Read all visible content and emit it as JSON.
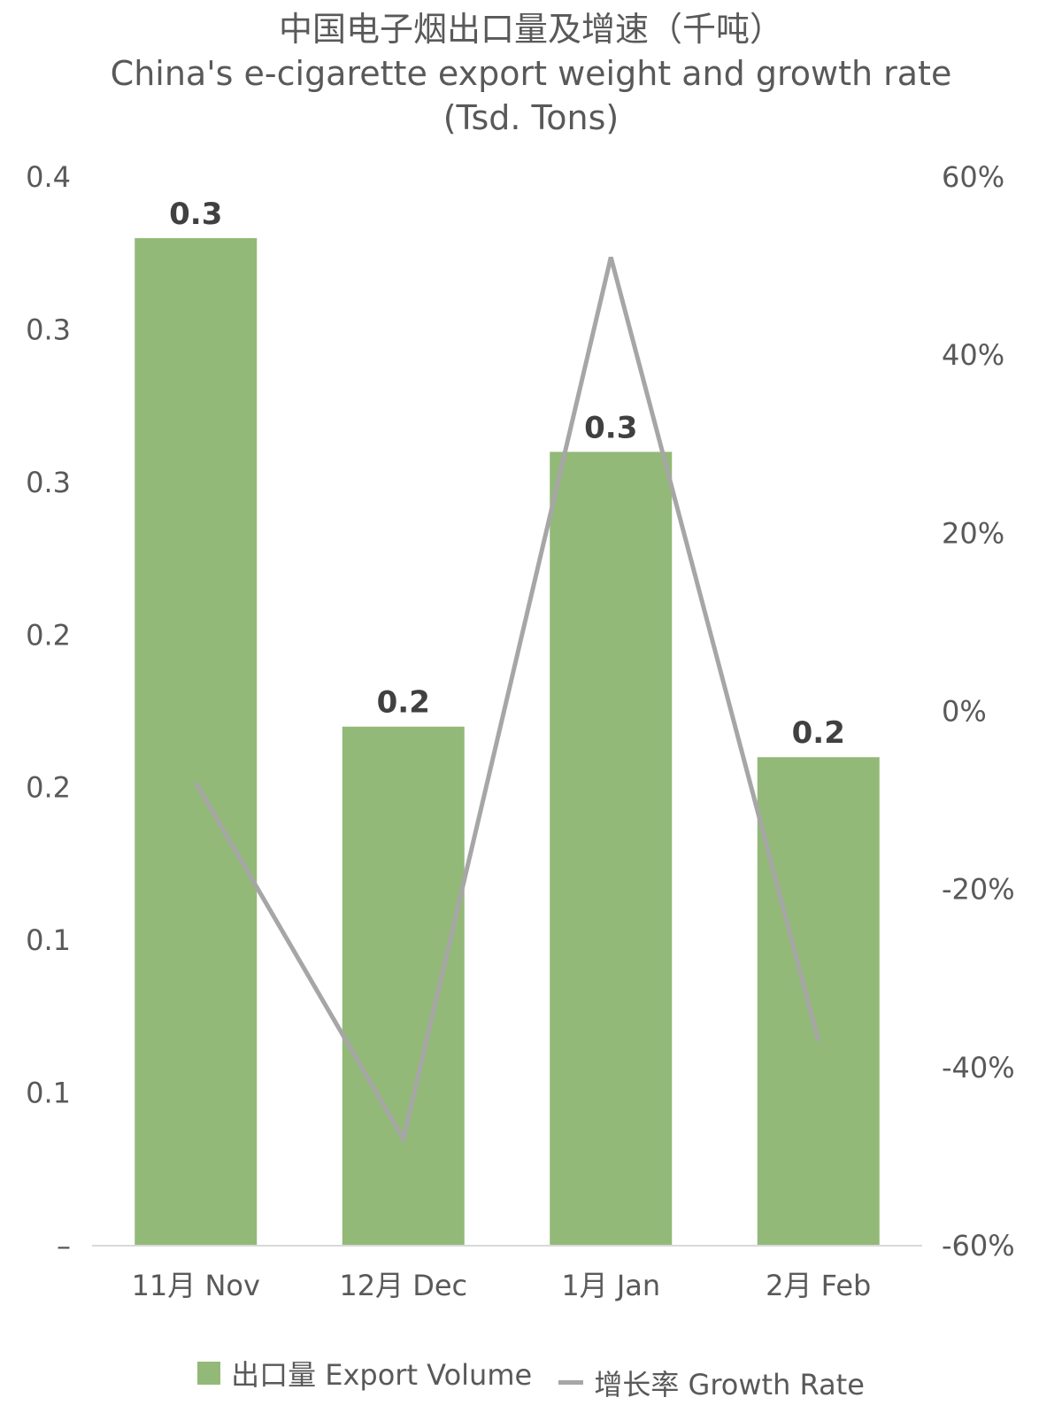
{
  "colors": {
    "bar": "#93b978",
    "line": "#a6a6a6",
    "axis": "#d9d9d9",
    "text": "#595959"
  },
  "chart_data": {
    "type": "bar",
    "title": "中国电子烟出口量及增速（千吨）",
    "subtitle": "China's e-cigarette export weight and growth rate (Tsd. Tons)",
    "categories": [
      "11月 Nov",
      "12月 Dec",
      "1月 Jan",
      "2月 Feb"
    ],
    "series": [
      {
        "name": "出口量 Export Volume",
        "type": "bar",
        "axis": "left",
        "values": [
          0.33,
          0.17,
          0.26,
          0.16
        ],
        "labels": [
          "0.3",
          "0.2",
          "0.3",
          "0.2"
        ]
      },
      {
        "name": "增长率 Growth Rate",
        "type": "line",
        "axis": "right",
        "values": [
          -8,
          -48,
          51,
          -37
        ]
      }
    ],
    "y_left": {
      "ylim": [
        0,
        0.35
      ],
      "ticks": [
        0,
        0.05,
        0.1,
        0.15,
        0.2,
        0.25,
        0.3,
        0.35
      ],
      "tick_labels": [
        "–",
        "0.1",
        "0.1",
        "0.2",
        "0.2",
        "0.3",
        "0.3",
        "0.4"
      ]
    },
    "y_right": {
      "ylim": [
        -60,
        60
      ],
      "ticks": [
        -60,
        -40,
        -20,
        0,
        20,
        40,
        60
      ],
      "tick_labels": [
        "-60%",
        "-40%",
        "-20%",
        "0%",
        "20%",
        "40%",
        "60%"
      ]
    },
    "grid": false,
    "legend": "bottom"
  }
}
